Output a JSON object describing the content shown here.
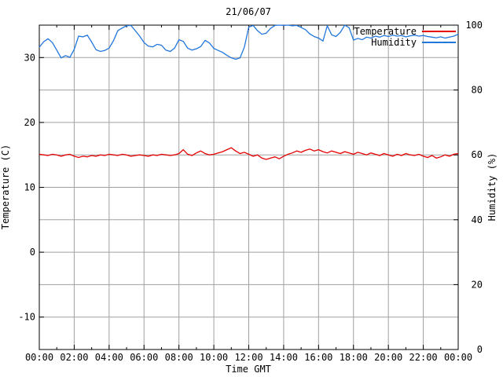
{
  "title": "21/06/07",
  "colors": {
    "background": "#ffffff",
    "text": "#000000",
    "grid": "#a0a0a0",
    "axis": "#000000",
    "temperature_line": "#e60000",
    "humidity_line": "#2277dd"
  },
  "legend": [
    {
      "label": "Temperature",
      "color": "#e60000"
    },
    {
      "label": "Humidity",
      "color": "#2277dd"
    }
  ],
  "chart_data": {
    "type": "line",
    "title": "21/06/07",
    "xlabel": "Time GMT",
    "ylabel_left": "Temperature (C)",
    "ylabel_right": "Humidity (%)",
    "x_unit": "hours",
    "x_range": [
      0,
      24
    ],
    "x_major_step_hours": 2,
    "x_minor_step_hours": 1,
    "x_tick_labels": [
      "00:00",
      "02:00",
      "04:00",
      "06:00",
      "08:00",
      "10:00",
      "12:00",
      "14:00",
      "16:00",
      "18:00",
      "20:00",
      "22:00",
      "00:00"
    ],
    "y_left_range": [
      -15,
      35
    ],
    "y_left_ticks": [
      30,
      20,
      10,
      0,
      -10
    ],
    "y_right_range": [
      0,
      100
    ],
    "y_right_ticks": [
      100,
      80,
      60,
      40,
      20,
      0
    ],
    "grid": true,
    "legend_position": "top-right",
    "x_hours": [
      0,
      0.25,
      0.5,
      0.75,
      1,
      1.25,
      1.5,
      1.75,
      2,
      2.25,
      2.5,
      2.75,
      3,
      3.25,
      3.5,
      3.75,
      4,
      4.25,
      4.5,
      4.75,
      5,
      5.25,
      5.5,
      5.75,
      6,
      6.25,
      6.5,
      6.75,
      7,
      7.25,
      7.5,
      7.75,
      8,
      8.25,
      8.5,
      8.75,
      9,
      9.25,
      9.5,
      9.75,
      10,
      10.25,
      10.5,
      10.75,
      11,
      11.25,
      11.5,
      11.75,
      12,
      12.25,
      12.5,
      12.75,
      13,
      13.25,
      13.5,
      13.75,
      14,
      14.25,
      14.5,
      14.75,
      15,
      15.25,
      15.5,
      15.75,
      16,
      16.25,
      16.5,
      16.75,
      17,
      17.25,
      17.5,
      17.75,
      18,
      18.25,
      18.5,
      18.75,
      19,
      19.25,
      19.5,
      19.75,
      20,
      20.25,
      20.5,
      20.75,
      21,
      21.25,
      21.5,
      21.75,
      22,
      22.25,
      22.5,
      22.75,
      23,
      23.25,
      23.5,
      23.75,
      24
    ],
    "series": [
      {
        "name": "Temperature",
        "y_axis": "left",
        "unit": "C",
        "color": "#e60000",
        "values": [
          15.1,
          15.0,
          14.9,
          15.1,
          15.0,
          14.8,
          15.0,
          15.1,
          14.8,
          14.6,
          14.8,
          14.7,
          14.9,
          14.8,
          15.0,
          14.9,
          15.1,
          15.0,
          14.9,
          15.1,
          15.0,
          14.8,
          14.9,
          15.0,
          14.9,
          14.8,
          15.0,
          14.9,
          15.1,
          15.0,
          14.9,
          15.0,
          15.2,
          15.8,
          15.1,
          14.9,
          15.3,
          15.6,
          15.2,
          15.0,
          15.1,
          15.3,
          15.5,
          15.8,
          16.1,
          15.6,
          15.2,
          15.4,
          15.1,
          14.8,
          15.0,
          14.5,
          14.3,
          14.5,
          14.7,
          14.4,
          14.8,
          15.1,
          15.3,
          15.6,
          15.4,
          15.7,
          15.9,
          15.6,
          15.8,
          15.5,
          15.3,
          15.6,
          15.4,
          15.2,
          15.5,
          15.3,
          15.1,
          15.4,
          15.2,
          15.0,
          15.3,
          15.1,
          14.9,
          15.2,
          15.0,
          14.8,
          15.1,
          14.9,
          15.2,
          15.0,
          14.9,
          15.1,
          14.8,
          14.6,
          14.9,
          14.5,
          14.7,
          15.0,
          14.8,
          15.1,
          15.2
        ]
      },
      {
        "name": "Humidity",
        "y_axis": "right",
        "unit": "%",
        "color": "#2277dd",
        "values": [
          93.2,
          94.9,
          95.8,
          94.6,
          92.3,
          89.9,
          90.6,
          90.1,
          92.5,
          96.6,
          96.4,
          96.9,
          94.8,
          92.4,
          91.9,
          92.2,
          92.9,
          95.2,
          98.3,
          99.1,
          99.8,
          99.9,
          98.3,
          96.6,
          94.6,
          93.5,
          93.3,
          94.1,
          93.8,
          92.3,
          91.9,
          92.9,
          95.5,
          95.0,
          92.9,
          92.3,
          92.7,
          93.4,
          95.3,
          94.5,
          92.8,
          92.2,
          91.6,
          90.7,
          89.9,
          89.5,
          89.9,
          93.2,
          99.4,
          99.9,
          98.3,
          97.2,
          97.5,
          99.0,
          99.9,
          100.0,
          99.9,
          100.0,
          99.8,
          99.9,
          99.3,
          98.6,
          97.3,
          96.5,
          96.0,
          95.1,
          99.8,
          97.0,
          96.5,
          97.8,
          100.0,
          99.2,
          95.4,
          95.9,
          95.5,
          96.3,
          96.0,
          96.6,
          96.3,
          96.8,
          96.5,
          96.9,
          96.6,
          96.8,
          96.4,
          96.7,
          96.9,
          96.6,
          96.8,
          96.5,
          96.3,
          96.1,
          96.4,
          96.0,
          96.3,
          96.6,
          97.2
        ]
      }
    ]
  }
}
